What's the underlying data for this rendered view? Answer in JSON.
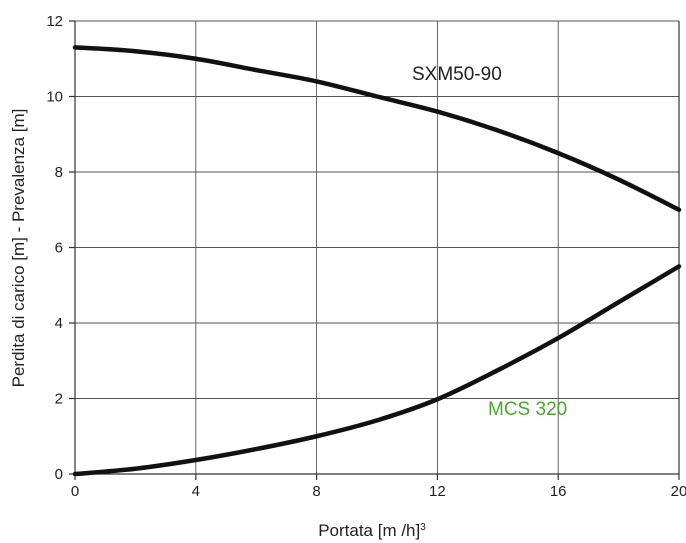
{
  "chart_data": {
    "type": "line",
    "xlabel": "Portata [m /h]",
    "xlabel_superscript": "3",
    "ylabel": "Perdita di carico [m] - Prevalenza [m]",
    "xlim": [
      0,
      20
    ],
    "ylim": [
      0,
      12
    ],
    "x_ticks": [
      0,
      4,
      8,
      12,
      16,
      20
    ],
    "y_ticks": [
      0,
      2,
      4,
      6,
      8,
      10,
      12
    ],
    "grid": true,
    "series": [
      {
        "name": "SXM50-90",
        "color": "#111111",
        "label_color": "#222222",
        "x": [
          0,
          2,
          4,
          6,
          8,
          10,
          12,
          14,
          16,
          18,
          20
        ],
        "y": [
          11.3,
          11.2,
          11.0,
          10.7,
          10.4,
          10.0,
          9.6,
          9.1,
          8.5,
          7.8,
          7.0
        ]
      },
      {
        "name": "MCS 320",
        "color": "#111111",
        "label_color": "#4aa832",
        "x": [
          0,
          2,
          4,
          6,
          8,
          10,
          12,
          14,
          16,
          18,
          20
        ],
        "y": [
          0,
          0.14,
          0.37,
          0.66,
          1.0,
          1.42,
          1.98,
          2.75,
          3.6,
          4.55,
          5.5
        ]
      }
    ]
  }
}
